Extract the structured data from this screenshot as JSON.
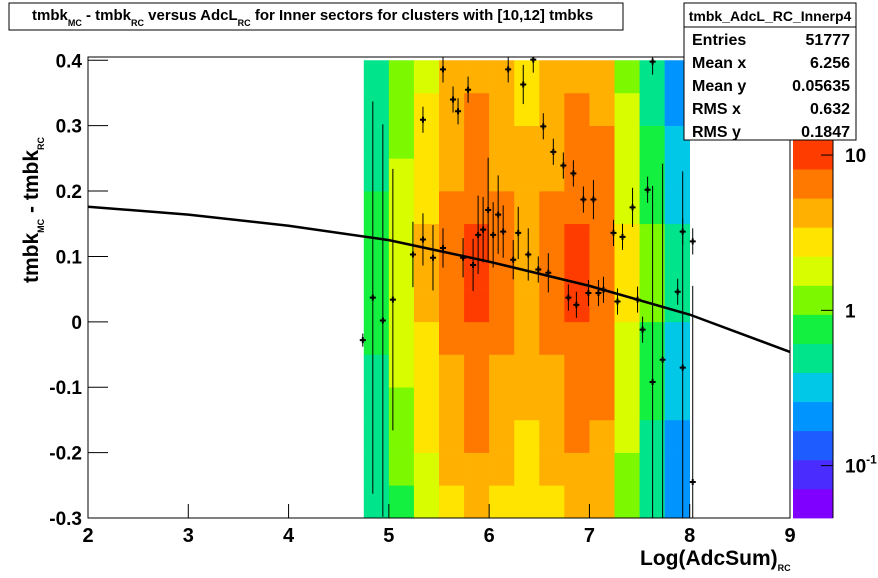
{
  "chart_data": {
    "type": "heatmap",
    "title": [
      {
        "text": "tmbk",
        "sub": "MC"
      },
      {
        "text": " - tmbk",
        "sub": "RC"
      },
      {
        "text": " versus AdcL",
        "sub": "RC"
      },
      {
        "text": " for Inner sectors for clusters with [10,12] tmbks"
      }
    ],
    "x_label": [
      {
        "text": "Log(AdcSum)",
        "sub": "RC"
      }
    ],
    "y_label": [
      {
        "text": "tmbk",
        "sub": "MC"
      },
      {
        "text": " - tmbk",
        "sub": "RC"
      }
    ],
    "xlim": [
      2,
      9
    ],
    "xticks": [
      2,
      3,
      4,
      5,
      6,
      7,
      8,
      9
    ],
    "ylim": [
      -0.3,
      0.405
    ],
    "yticks": [
      -0.3,
      -0.2,
      -0.1,
      0,
      0.1,
      0.2,
      0.3,
      0.4
    ],
    "zlim": [
      0.046,
      12.5
    ],
    "zticks": [
      10,
      1,
      {
        "value": 0.1,
        "label": "10",
        "exponent": "-1"
      }
    ],
    "log_z": true,
    "palette": [
      "#7f00ff",
      "#4a2cff",
      "#1f5cff",
      "#0094ff",
      "#00c8e6",
      "#00e48c",
      "#14f040",
      "#7cf800",
      "#d8fc00",
      "#ffe400",
      "#ffb000",
      "#ff7800",
      "#ff3c00"
    ],
    "heatmap": {
      "x_edges": [
        4.75,
        5.0,
        5.25,
        5.5,
        5.75,
        6.0,
        6.25,
        6.5,
        6.75,
        7.0,
        7.25,
        7.5,
        7.75,
        8.0
      ],
      "y_edges": [
        -0.3,
        -0.25,
        -0.2,
        -0.15,
        -0.1,
        -0.05,
        0,
        0.05,
        0.1,
        0.15,
        0.2,
        0.25,
        0.3,
        0.35,
        0.4
      ],
      "values": [
        [
          0.4,
          0.9,
          1.8,
          3,
          4.2,
          3,
          2.4,
          3,
          4.2,
          3.6,
          1.2,
          0.5,
          0.2
        ],
        [
          0.4,
          1.1,
          2.1,
          3.5,
          4.9,
          3.5,
          2.8,
          3.5,
          4.9,
          4.2,
          1.4,
          0.6,
          0.2
        ],
        [
          0.5,
          1.2,
          2.4,
          4,
          5.6,
          4,
          3.2,
          4,
          5.6,
          4.8,
          1.6,
          0.6,
          0.2
        ],
        [
          0.5,
          1.4,
          2.7,
          4.5,
          6.3,
          4.5,
          3.6,
          4.5,
          6.3,
          5.4,
          1.8,
          0.7,
          0.3
        ],
        [
          0.6,
          1.5,
          3,
          5,
          7,
          5,
          4,
          5,
          7,
          6,
          2,
          0.8,
          0.3
        ],
        [
          0.7,
          1.7,
          3.3,
          5.5,
          7.7,
          5.5,
          4.4,
          5.5,
          7.7,
          6.6,
          2.2,
          0.9,
          0.3
        ],
        [
          0.7,
          1.8,
          3.6,
          6,
          8.4,
          6,
          4.8,
          6,
          8.4,
          7.2,
          2.4,
          1,
          0.4
        ],
        [
          0.7,
          1.8,
          3.6,
          6,
          8.4,
          6,
          4.8,
          6,
          8.4,
          7.2,
          2.4,
          1,
          0.4
        ],
        [
          0.7,
          1.8,
          3.6,
          6,
          8.4,
          6,
          4.8,
          6,
          8.4,
          7.2,
          2.4,
          1,
          0.4
        ],
        [
          0.7,
          1.7,
          3.3,
          5.5,
          7.7,
          5.5,
          4.4,
          5.5,
          7.7,
          6.6,
          2.2,
          0.9,
          0.3
        ],
        [
          0.6,
          1.5,
          3,
          5,
          7,
          5,
          4,
          5,
          7,
          6,
          2,
          0.8,
          0.3
        ],
        [
          0.5,
          1.4,
          2.7,
          4.5,
          6.3,
          4.5,
          3.6,
          4.5,
          6.3,
          5.4,
          1.8,
          0.7,
          0.3
        ],
        [
          0.5,
          1.2,
          2.4,
          4,
          5.6,
          4,
          3.2,
          4,
          5.6,
          4.8,
          1.6,
          0.6,
          0.2
        ],
        [
          0.4,
          1.1,
          2.1,
          3.5,
          4.9,
          3.5,
          2.8,
          3.5,
          4.9,
          4.2,
          1.4,
          0.6,
          0.2
        ]
      ]
    },
    "profile": {
      "color": "#000000",
      "x": [
        4.74,
        4.84,
        4.94,
        5.04,
        5.24,
        5.34,
        5.34,
        5.44,
        5.54,
        5.54,
        5.64,
        5.69,
        5.74,
        5.79,
        5.84,
        5.89,
        5.94,
        5.99,
        6.04,
        6.09,
        6.14,
        6.19,
        6.24,
        6.29,
        6.34,
        6.39,
        6.44,
        6.49,
        6.54,
        6.59,
        6.64,
        6.74,
        6.79,
        6.84,
        6.87,
        6.94,
        6.99,
        7.04,
        7.09,
        7.14,
        7.24,
        7.28,
        7.33,
        7.43,
        7.48,
        7.53,
        7.58,
        7.63,
        7.63,
        7.73,
        7.88,
        7.93,
        7.93,
        8.03,
        8.03
      ],
      "values": [
        -0.028,
        0.037,
        0.002,
        0.034,
        0.103,
        0.126,
        0.309,
        0.098,
        0.386,
        0.113,
        0.34,
        0.322,
        0.098,
        0.355,
        0.087,
        0.133,
        0.141,
        0.171,
        0.133,
        0.164,
        0.138,
        0.386,
        0.095,
        0.136,
        0.363,
        0.103,
        0.401,
        0.08,
        0.299,
        0.075,
        0.26,
        0.239,
        0.037,
        0.227,
        0.026,
        0.187,
        0.044,
        0.187,
        0.044,
        0.049,
        0.136,
        0.031,
        0.13,
        0.175,
        0.034,
        -0.012,
        0.202,
        -0.092,
        0.398,
        -0.058,
        0.046,
        0.138,
        -0.07,
        0.123,
        -0.245
      ],
      "errors": [
        0.01,
        0.3,
        0.3,
        0.2,
        0.05,
        0.04,
        0.02,
        0.05,
        0.02,
        0.03,
        0.02,
        0.02,
        0.03,
        0.02,
        0.04,
        0.06,
        0.05,
        0.08,
        0.05,
        0.06,
        0.04,
        0.02,
        0.03,
        0.04,
        0.03,
        0.04,
        0.02,
        0.02,
        0.02,
        0.03,
        0.02,
        0.02,
        0.02,
        0.02,
        0.02,
        0.02,
        0.02,
        0.03,
        0.02,
        0.02,
        0.02,
        0.02,
        0.02,
        0.03,
        0.02,
        0.02,
        0.02,
        0.3,
        0.02,
        0.3,
        0.02,
        0.02,
        0.3,
        0.02,
        0.3
      ]
    },
    "fit": {
      "color": "#000000",
      "x": [
        2,
        3,
        4,
        5,
        6,
        7,
        8,
        9
      ],
      "values": [
        0.176,
        0.164,
        0.147,
        0.125,
        0.092,
        0.055,
        0.011,
        -0.046
      ]
    },
    "stats": {
      "name": "tmbk_AdcL_RC_Innerp4",
      "rows": [
        {
          "label": "Entries",
          "value": 51777
        },
        {
          "label": "Mean x",
          "value": 6.256
        },
        {
          "label": "Mean y",
          "value": 0.05635
        },
        {
          "label": "RMS x",
          "value": 0.632
        },
        {
          "label": "RMS y",
          "value": 0.1847
        }
      ]
    }
  }
}
